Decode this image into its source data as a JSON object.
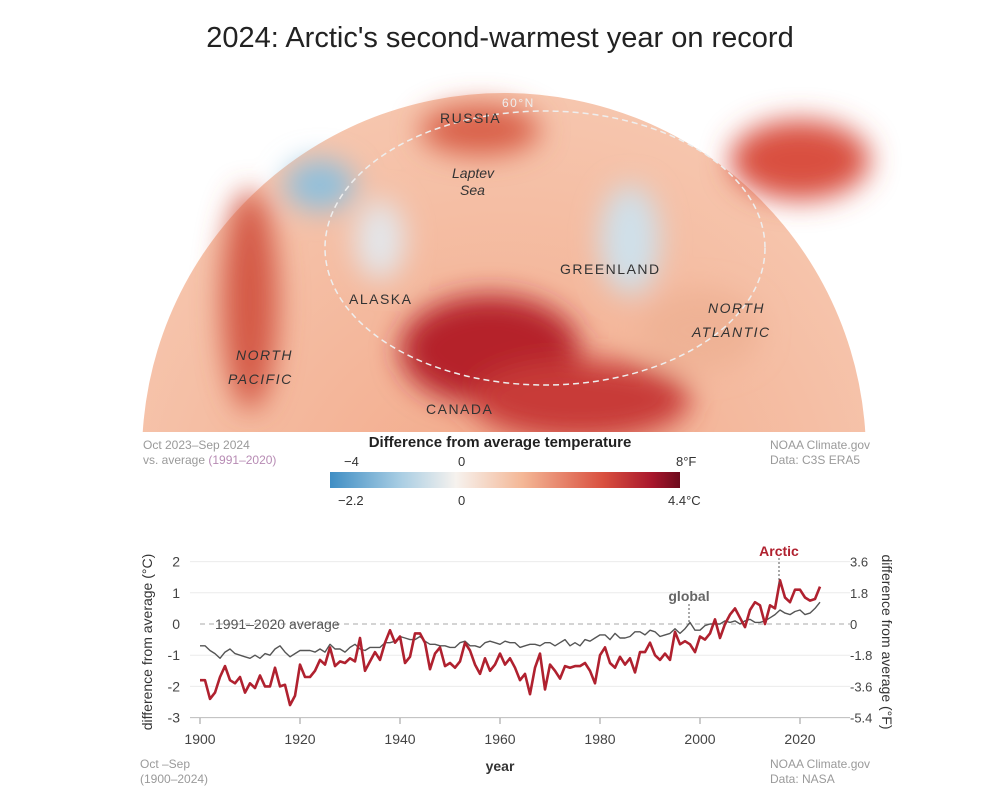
{
  "title": "2024: Arctic's second-warmest year on record",
  "map": {
    "labels": {
      "russia": "RUSSIA",
      "lat": "60°N",
      "laptev": "Laptev",
      "sea": "Sea",
      "greenland": "GREENLAND",
      "alaska": "ALASKA",
      "north_atlantic_1": "NORTH",
      "north_atlantic_2": "ATLANTIC",
      "north_pacific_1": "NORTH",
      "north_pacific_2": "PACIFIC",
      "canada": "CANADA"
    },
    "period_line1": "Oct 2023–Sep 2024",
    "period_line2_prefix": "vs. average ",
    "period_line2_highlight": "(1991–2020)",
    "credit_line1": "NOAA Climate.gov",
    "credit_line2": "Data: C3S ERA5"
  },
  "legend": {
    "title": "Difference from average temperature",
    "f_min": "−4",
    "f_zero": "0",
    "f_max": "8°F",
    "c_min": "−2.2",
    "c_zero": "0",
    "c_max": "4.4°C",
    "colors": [
      "#3f8ec4",
      "#f6f2ee",
      "#6d0a1c"
    ]
  },
  "chart_data": {
    "type": "line",
    "xlabel": "year",
    "ylabel": "difference from average (°C)",
    "ylabel_right": "difference from average (°F)",
    "ylim": [
      -3,
      2
    ],
    "xlim": [
      1900,
      2024
    ],
    "xticks": [
      "1900",
      "1920",
      "1940",
      "1960",
      "1980",
      "2000",
      "2020"
    ],
    "yticks": [
      "2",
      "1",
      "0",
      "-1",
      "-2",
      "-3"
    ],
    "yticks_right": [
      "3.6",
      "1.8",
      "0",
      "-1.8",
      "-3.6",
      "-5.4"
    ],
    "baseline_label": "1991–2020 average",
    "note_line1": "Oct –Sep",
    "note_line2": "(1900–2024)",
    "credit_line1": "NOAA Climate.gov",
    "credit_line2": "Data: NASA",
    "x_start": 1900,
    "series": [
      {
        "name": "Arctic",
        "color": "#b0212f",
        "values": [
          -1.8,
          -1.8,
          -2.4,
          -2.2,
          -1.7,
          -1.35,
          -1.8,
          -1.9,
          -1.7,
          -2.2,
          -1.9,
          -2.05,
          -1.65,
          -2.0,
          -2.0,
          -1.4,
          -2.0,
          -1.95,
          -2.6,
          -2.3,
          -1.3,
          -1.7,
          -1.7,
          -1.5,
          -1.15,
          -1.3,
          -0.75,
          -1.35,
          -1.2,
          -1.25,
          -1.1,
          -1.2,
          -0.45,
          -1.5,
          -1.2,
          -0.9,
          -1.15,
          -0.6,
          -0.2,
          -0.6,
          -0.4,
          -1.25,
          -1.05,
          -0.3,
          -0.3,
          -0.6,
          -1.45,
          -0.95,
          -0.75,
          -1.35,
          -1.25,
          -1.4,
          -1.2,
          -0.6,
          -0.85,
          -1.3,
          -1.6,
          -1.1,
          -1.5,
          -1.3,
          -0.95,
          -1.3,
          -1.1,
          -1.4,
          -1.8,
          -1.6,
          -2.25,
          -1.4,
          -0.95,
          -2.1,
          -1.3,
          -1.5,
          -1.75,
          -1.35,
          -1.4,
          -1.35,
          -1.35,
          -1.25,
          -1.5,
          -1.9,
          -1.0,
          -0.75,
          -1.25,
          -1.4,
          -1.05,
          -1.3,
          -1.1,
          -1.55,
          -0.9,
          -0.9,
          -0.6,
          -1.0,
          -1.15,
          -0.95,
          -1.15,
          -0.25,
          -0.65,
          -0.55,
          -0.65,
          -0.9,
          -0.4,
          -0.5,
          -0.3,
          0.15,
          -0.45,
          0.0,
          0.3,
          0.5,
          0.2,
          -0.1,
          0.45,
          0.7,
          0.6,
          0.0,
          0.6,
          0.5,
          1.4,
          0.85,
          0.7,
          1.1,
          1.1,
          0.85,
          0.75,
          0.8,
          1.2
        ]
      },
      {
        "name": "global",
        "color": "#555555",
        "values": [
          -0.7,
          -0.7,
          -0.85,
          -0.95,
          -1.1,
          -0.9,
          -0.8,
          -0.95,
          -1.0,
          -1.05,
          -1.1,
          -1.0,
          -1.1,
          -0.95,
          -1.0,
          -0.8,
          -0.7,
          -0.9,
          -1.05,
          -0.95,
          -0.85,
          -0.85,
          -0.85,
          -0.9,
          -0.8,
          -0.9,
          -0.65,
          -0.8,
          -0.8,
          -0.9,
          -0.75,
          -0.65,
          -0.8,
          -0.85,
          -0.75,
          -0.75,
          -0.75,
          -0.6,
          -0.6,
          -0.55,
          -0.4,
          -0.45,
          -0.5,
          -0.5,
          -0.4,
          -0.55,
          -0.65,
          -0.65,
          -0.7,
          -0.7,
          -0.75,
          -0.75,
          -0.6,
          -0.55,
          -0.7,
          -0.7,
          -0.75,
          -0.6,
          -0.55,
          -0.6,
          -0.65,
          -0.55,
          -0.6,
          -0.6,
          -0.75,
          -0.7,
          -0.65,
          -0.65,
          -0.7,
          -0.6,
          -0.6,
          -0.7,
          -0.6,
          -0.5,
          -0.7,
          -0.6,
          -0.7,
          -0.5,
          -0.55,
          -0.45,
          -0.35,
          -0.35,
          -0.5,
          -0.3,
          -0.45,
          -0.45,
          -0.4,
          -0.25,
          -0.25,
          -0.35,
          -0.2,
          -0.25,
          -0.4,
          -0.35,
          -0.3,
          -0.15,
          -0.3,
          -0.15,
          0.05,
          -0.2,
          -0.2,
          -0.05,
          0.0,
          0.0,
          0.0,
          0.1,
          0.05,
          0.1,
          0.0,
          0.1,
          0.15,
          0.05,
          0.05,
          0.1,
          0.2,
          0.3,
          0.45,
          0.35,
          0.3,
          0.4,
          0.45,
          0.3,
          0.35,
          0.5,
          0.7
        ]
      }
    ],
    "annotations": [
      {
        "text": "Arctic",
        "year": 2016
      },
      {
        "text": "global",
        "year": 1998
      }
    ]
  }
}
